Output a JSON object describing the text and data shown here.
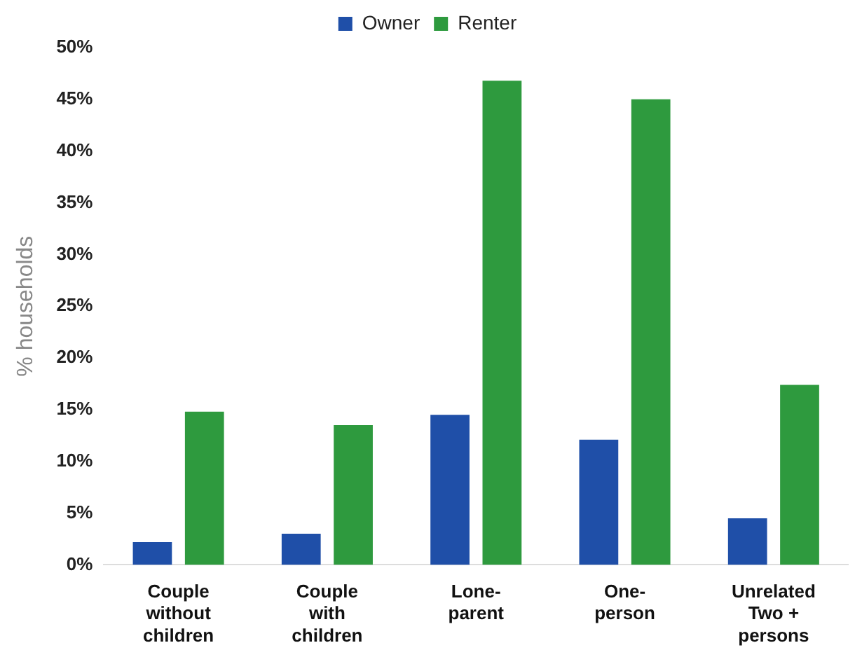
{
  "chart_data": {
    "type": "bar",
    "ylabel": "% households",
    "categories": [
      "Couple\nwithout\nchildren",
      "Couple\nwith\nchildren",
      "Lone-\nparent",
      "One-\nperson",
      "Unrelated\nTwo +\npersons"
    ],
    "series": [
      {
        "name": "Owner",
        "color": "#1f4fa8",
        "values": [
          2.2,
          3.0,
          14.5,
          12.1,
          4.5
        ]
      },
      {
        "name": "Renter",
        "color": "#2e9a3e",
        "values": [
          14.8,
          13.5,
          46.8,
          45.0,
          17.4
        ]
      }
    ],
    "ylim": [
      0,
      50
    ],
    "yticks": [
      {
        "value": 0,
        "label": "0%"
      },
      {
        "value": 5,
        "label": "5%"
      },
      {
        "value": 10,
        "label": "10%"
      },
      {
        "value": 15,
        "label": "15%"
      },
      {
        "value": 20,
        "label": "20%"
      },
      {
        "value": 25,
        "label": "25%"
      },
      {
        "value": 30,
        "label": "30%"
      },
      {
        "value": 35,
        "label": "35%"
      },
      {
        "value": 40,
        "label": "40%"
      },
      {
        "value": 45,
        "label": "45%"
      },
      {
        "value": 50,
        "label": "50%"
      }
    ],
    "grid": false,
    "legend": "top"
  }
}
